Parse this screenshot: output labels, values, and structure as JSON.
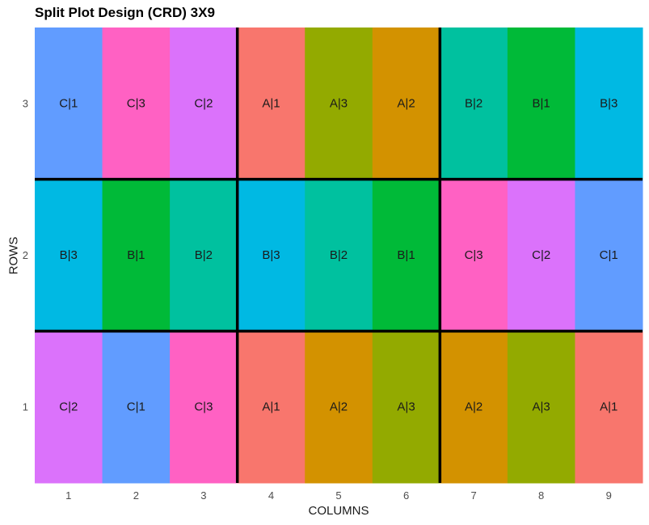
{
  "chart_data": {
    "type": "heatmap",
    "title": "Split Plot Design (CRD) 3X9",
    "xlabel": "COLUMNS",
    "ylabel": "ROWS",
    "x_ticks": [
      "1",
      "2",
      "3",
      "4",
      "5",
      "6",
      "7",
      "8",
      "9"
    ],
    "y_ticks": [
      "1",
      "2",
      "3"
    ],
    "cells": [
      {
        "row": 3,
        "col": 1,
        "label": "C|1"
      },
      {
        "row": 3,
        "col": 2,
        "label": "C|3"
      },
      {
        "row": 3,
        "col": 3,
        "label": "C|2"
      },
      {
        "row": 3,
        "col": 4,
        "label": "A|1"
      },
      {
        "row": 3,
        "col": 5,
        "label": "A|3"
      },
      {
        "row": 3,
        "col": 6,
        "label": "A|2"
      },
      {
        "row": 3,
        "col": 7,
        "label": "B|2"
      },
      {
        "row": 3,
        "col": 8,
        "label": "B|1"
      },
      {
        "row": 3,
        "col": 9,
        "label": "B|3"
      },
      {
        "row": 2,
        "col": 1,
        "label": "B|3"
      },
      {
        "row": 2,
        "col": 2,
        "label": "B|1"
      },
      {
        "row": 2,
        "col": 3,
        "label": "B|2"
      },
      {
        "row": 2,
        "col": 4,
        "label": "B|3"
      },
      {
        "row": 2,
        "col": 5,
        "label": "B|2"
      },
      {
        "row": 2,
        "col": 6,
        "label": "B|1"
      },
      {
        "row": 2,
        "col": 7,
        "label": "C|3"
      },
      {
        "row": 2,
        "col": 8,
        "label": "C|2"
      },
      {
        "row": 2,
        "col": 9,
        "label": "C|1"
      },
      {
        "row": 1,
        "col": 1,
        "label": "C|2"
      },
      {
        "row": 1,
        "col": 2,
        "label": "C|1"
      },
      {
        "row": 1,
        "col": 3,
        "label": "C|3"
      },
      {
        "row": 1,
        "col": 4,
        "label": "A|1"
      },
      {
        "row": 1,
        "col": 5,
        "label": "A|2"
      },
      {
        "row": 1,
        "col": 6,
        "label": "A|3"
      },
      {
        "row": 1,
        "col": 7,
        "label": "A|2"
      },
      {
        "row": 1,
        "col": 8,
        "label": "A|3"
      },
      {
        "row": 1,
        "col": 9,
        "label": "A|1"
      }
    ],
    "colors": {
      "A|1": "#F8766D",
      "A|2": "#D39200",
      "A|3": "#93AA00",
      "B|1": "#00BA38",
      "B|2": "#00C19F",
      "B|3": "#00B9E3",
      "C|1": "#619CFF",
      "C|2": "#DB72FB",
      "C|3": "#FF61C3"
    },
    "block_borders": {
      "every_n_columns": 3,
      "every_n_rows": 1,
      "color": "#000000"
    },
    "grid": false,
    "legend": "none"
  }
}
